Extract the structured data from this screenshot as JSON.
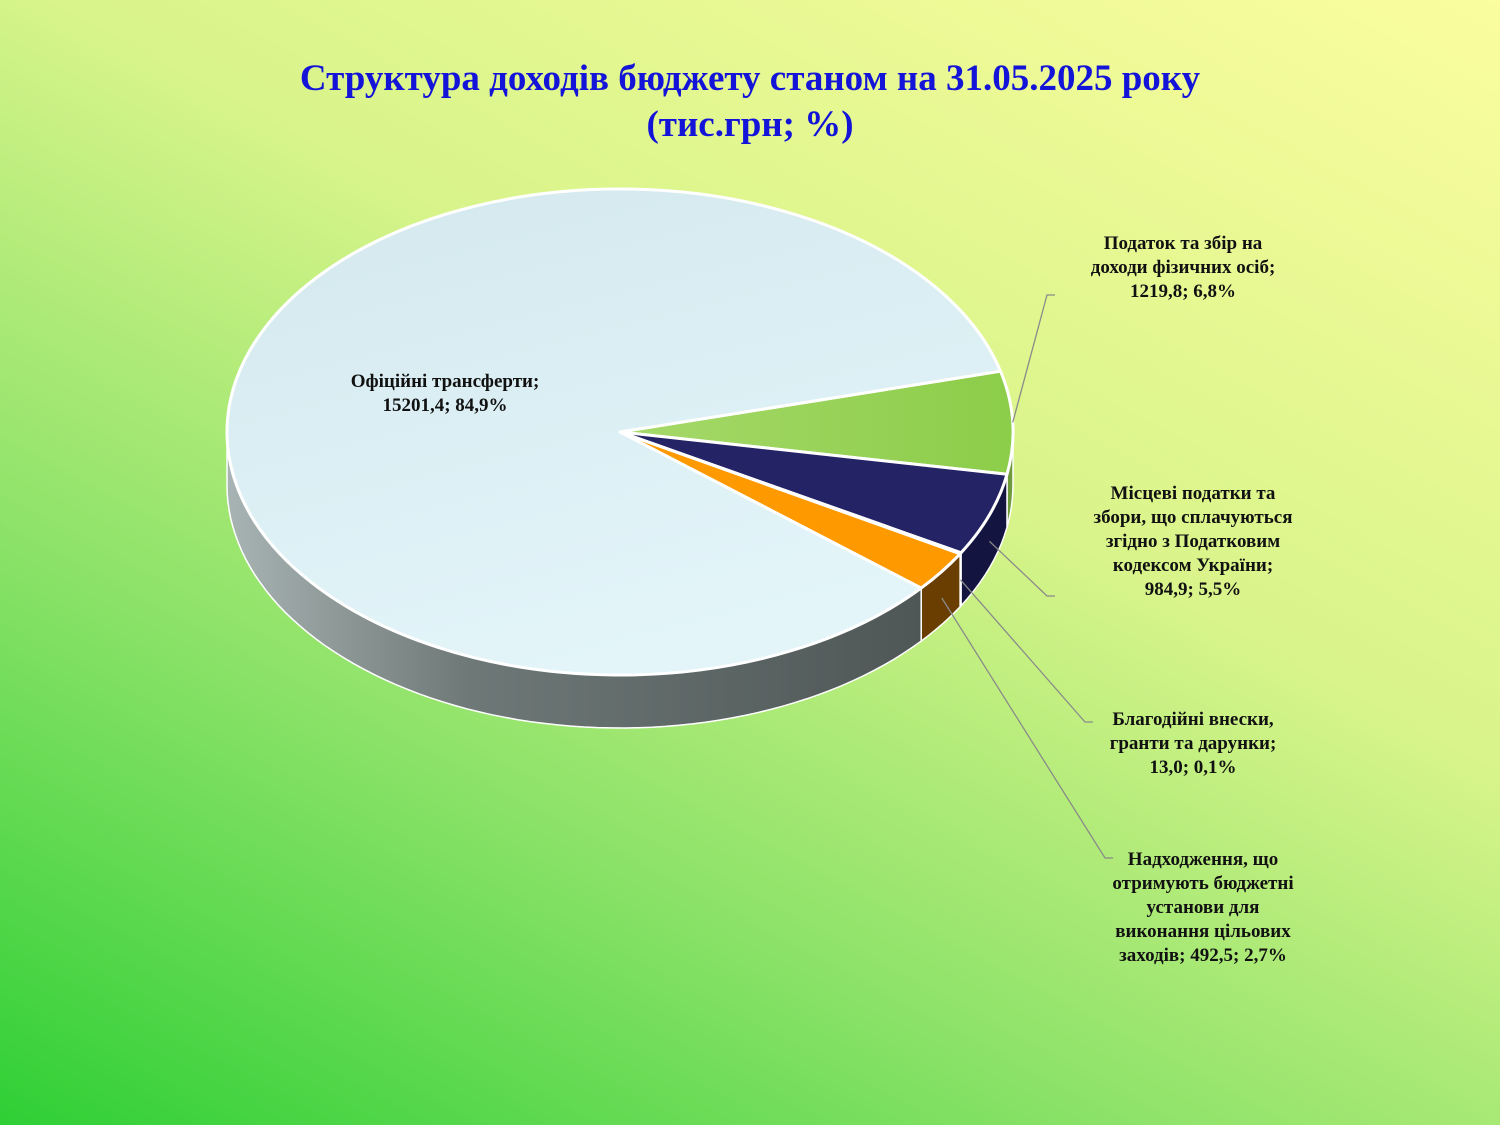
{
  "title_line1": "Структура доходів бюджету станом на 31.05.2025 року",
  "title_line2": "(тис.грн; %)",
  "chart_data": {
    "type": "pie",
    "title": "Структура доходів бюджету станом на 31.05.2025 року (тис.грн; %)",
    "unit": "тис.грн",
    "slices": [
      {
        "name": "Податок та збір на доходи фізичних осіб",
        "value": 1219.8,
        "percent": 6.8,
        "color": "#92d050",
        "label_lines": [
          "Податок та збір на",
          "доходи фізичних осіб;",
          "1219,8; 6,8%"
        ]
      },
      {
        "name": "Місцеві податки та збори, що сплачуються згідно з Податковим кодексом України",
        "value": 984.9,
        "percent": 5.5,
        "color": "#232366",
        "label_lines": [
          "Місцеві податки та",
          "збори, що сплачуються",
          "згідно з Податковим",
          "кодексом України;",
          "984,9; 5,5%"
        ]
      },
      {
        "name": "Благодійні внески, гранти та дарунки",
        "value": 13.0,
        "percent": 0.1,
        "color": "#1a1a1a",
        "label_lines": [
          "Благодійні внески,",
          "гранти та дарунки;",
          "13,0; 0,1%"
        ]
      },
      {
        "name": "Надходження, що отримують бюджетні установи для виконання цільових заходів",
        "value": 492.5,
        "percent": 2.7,
        "color": "#ff9900",
        "label_lines": [
          "Надходження, що",
          "отримують бюджетні",
          "установи для",
          "виконання цільових",
          "заходів; 492,5; 2,7%"
        ]
      },
      {
        "name": "Офіційні трансферти",
        "value": 15201.4,
        "percent": 84.9,
        "color": "#dbeef3",
        "label_lines": [
          "Офіційні трансферти;",
          "15201,4; 84,9%"
        ]
      }
    ]
  }
}
